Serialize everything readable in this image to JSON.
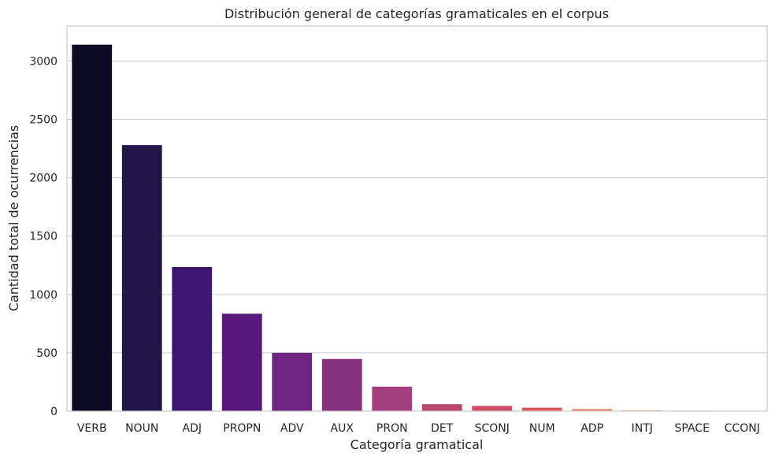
{
  "chart_data": {
    "type": "bar",
    "title": "Distribución general de categorías gramaticales en el corpus",
    "xlabel": "Categoría gramatical",
    "ylabel": "Cantidad total de ocurrencias",
    "categories": [
      "VERB",
      "NOUN",
      "ADJ",
      "PROPN",
      "ADV",
      "AUX",
      "PRON",
      "DET",
      "SCONJ",
      "NUM",
      "ADP",
      "INTJ",
      "SPACE",
      "CCONJ"
    ],
    "values": [
      3140,
      2280,
      1235,
      835,
      500,
      447,
      210,
      60,
      45,
      30,
      18,
      8,
      5,
      3
    ],
    "colors": [
      "#0e0b25",
      "#221648",
      "#3b1771",
      "#56197b",
      "#6e2480",
      "#85327a",
      "#a1407d",
      "#b8466f",
      "#cf4a62",
      "#e2555f",
      "#ef8069",
      "#f3a079",
      "#f5c290",
      "#f8e0aa"
    ],
    "yticks": [
      0,
      500,
      1000,
      1500,
      2000,
      2500,
      3000
    ],
    "ylim": [
      0,
      3300
    ],
    "grid": true
  }
}
